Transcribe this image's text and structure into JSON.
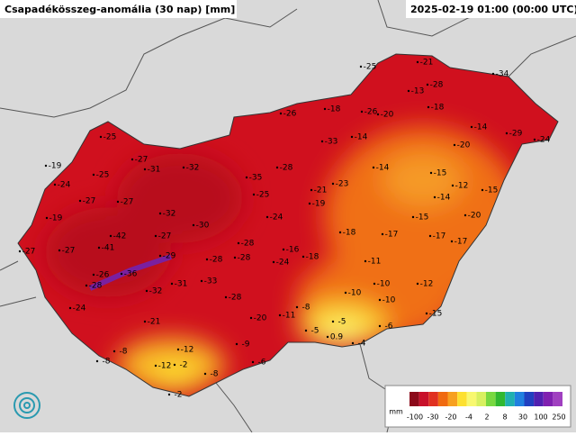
{
  "header": {
    "title": "Csapadékösszeg-anomália (30 nap) [mm]",
    "timestamp": "2025-02-19 01:00 (00:00 UTC)"
  },
  "stations": [
    -25,
    -21,
    -34,
    -13,
    -28,
    -18,
    -26,
    -20,
    -18,
    -26,
    -14,
    -29,
    -24,
    -33,
    -14,
    -20,
    -25,
    -27,
    -31,
    -32,
    -19,
    -28,
    -14,
    -15,
    -25,
    -35,
    -23,
    -12,
    -15,
    -24,
    -25,
    -21,
    -14,
    -27,
    -27,
    -19,
    -32,
    -24,
    -15,
    -20,
    -19,
    -30,
    -42,
    -27,
    -18,
    -17,
    -17,
    -17,
    -27,
    -27,
    -41,
    -28,
    -16,
    -29,
    -28,
    -28,
    -24,
    -18,
    -11,
    -26,
    -36,
    -28,
    -31,
    -33,
    -32,
    -10,
    -12,
    -10,
    -28,
    -10,
    -24,
    -8,
    -11,
    -20,
    -15,
    -21,
    -5,
    -5,
    -6,
    0.9,
    -4,
    -9,
    -12,
    -8,
    -6,
    -12,
    -2,
    -8,
    -8,
    -2
  ],
  "legend": {
    "unit": "mm",
    "labels": [
      -100,
      -30,
      -20,
      -4,
      2,
      8,
      30,
      100,
      250
    ],
    "colors": [
      "#8b0a1a",
      "#c8102a",
      "#e03020",
      "#f06a10",
      "#f7a020",
      "#fde030",
      "#f8f870",
      "#d8f060",
      "#78d840",
      "#30b830",
      "#20b0b0",
      "#2080e0",
      "#2040c0",
      "#5020b0",
      "#8020b0",
      "#a040c0"
    ]
  }
}
